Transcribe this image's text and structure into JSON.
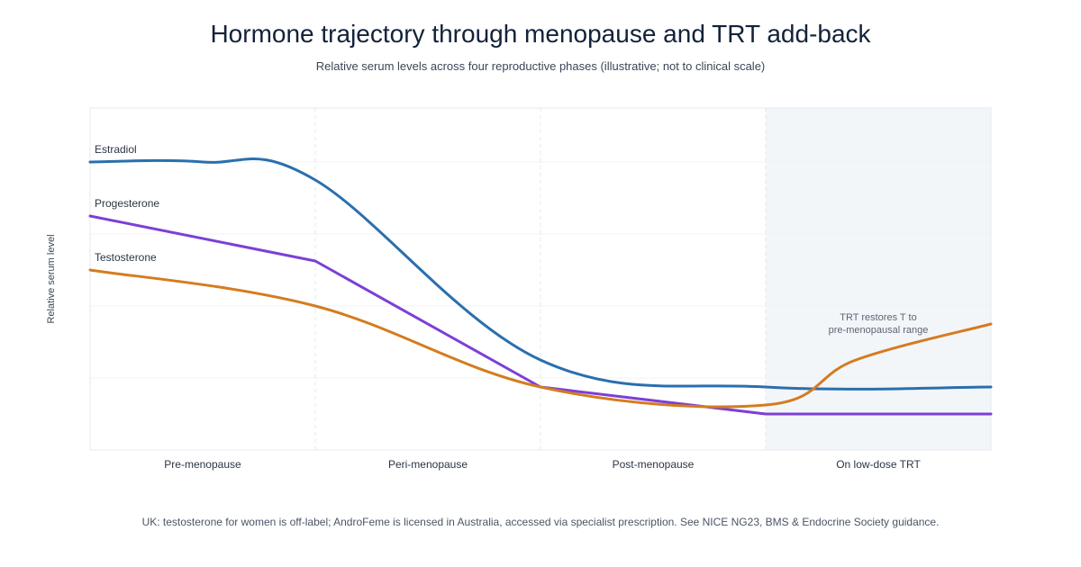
{
  "title": "Hormone trajectory through menopause and TRT add-back",
  "subtitle": "Relative serum levels across four reproductive phases (illustrative; not to clinical scale)",
  "footnote": "UK: testosterone for women is off-label; AndroFeme is licensed in Australia, accessed via specialist prescription. See NICE NG23, BMS & Endocrine Society guidance.",
  "chart_data": {
    "type": "line",
    "title": "Hormone trajectory through menopause and TRT add-back",
    "subtitle": "Relative serum levels across four reproductive phases (illustrative; not to clinical scale)",
    "xlabel": "",
    "ylabel": "Relative serum level",
    "categories": [
      "Pre-menopause",
      "Peri-menopause",
      "Post-menopause",
      "On low-dose TRT"
    ],
    "ylim": [
      0,
      95
    ],
    "grid": true,
    "legend": "inline labels at left",
    "highlight_region": "On low-dose TRT",
    "series": [
      {
        "name": "Estradiol",
        "color": "#2a6fad",
        "curve": "smooth",
        "x": [
          0,
          0.5,
          1,
          2,
          3,
          4
        ],
        "values": [
          80,
          80,
          75,
          25,
          17.5,
          17.5
        ]
      },
      {
        "name": "Progesterone",
        "color": "#7d3fd6",
        "curve": "linear",
        "x": [
          0,
          1,
          2,
          3,
          4
        ],
        "values": [
          65,
          52.5,
          17.5,
          10,
          10
        ]
      },
      {
        "name": "Testosterone",
        "color": "#d47c1f",
        "curve": "smooth",
        "x": [
          0,
          1,
          2,
          3,
          3.4,
          4
        ],
        "values": [
          50,
          40,
          17.5,
          12.5,
          25,
          35
        ]
      }
    ],
    "annotation": {
      "lines": [
        "TRT restores T to",
        "pre-menopausal range"
      ],
      "x": 3.5,
      "y": 36
    }
  }
}
